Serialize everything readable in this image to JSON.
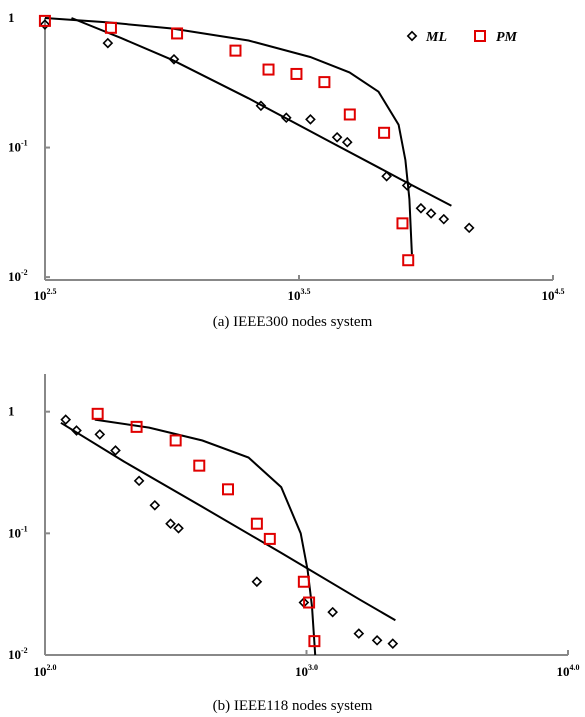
{
  "chart_data": [
    {
      "type": "scatter",
      "caption": "(a) IEEE300 nodes system",
      "x_scale": "log",
      "y_scale": "log",
      "x_ticks": [
        {
          "value": 316.23,
          "base": "10",
          "exp": "2.5"
        },
        {
          "value": 3162.28,
          "base": "10",
          "exp": "3.5"
        },
        {
          "value": 31622.78,
          "base": "10",
          "exp": "4.5"
        }
      ],
      "y_ticks": [
        {
          "value": 1,
          "base": "1",
          "exp": ""
        },
        {
          "value": 0.1,
          "base": "10",
          "exp": "-1"
        },
        {
          "value": 0.01,
          "base": "10",
          "exp": "-2"
        }
      ],
      "xlim": [
        316.23,
        31622.78
      ],
      "ylim": [
        0.0095,
        1.0
      ],
      "legend": {
        "position": "top-right",
        "entries": [
          "ML",
          "PM"
        ]
      },
      "series": [
        {
          "name": "ML",
          "marker": "diamond",
          "color": "#000000",
          "points": [
            [
              316,
              0.89
            ],
            [
              559,
              0.64
            ],
            [
              1018,
              0.48
            ],
            [
              2239,
              0.21
            ],
            [
              2818,
              0.17
            ],
            [
              3508,
              0.165
            ],
            [
              4467,
              0.12
            ],
            [
              4898,
              0.11
            ],
            [
              6998,
              0.06
            ],
            [
              8428,
              0.051
            ],
            [
              9551,
              0.034
            ],
            [
              10471,
              0.031
            ],
            [
              11749,
              0.028
            ],
            [
              14791,
              0.024
            ]
          ]
        },
        {
          "name": "PM",
          "marker": "square",
          "color": "#e00000",
          "points": [
            [
              316,
              0.95
            ],
            [
              575,
              0.84
            ],
            [
              1047,
              0.76
            ],
            [
              1778,
              0.56
            ],
            [
              2399,
              0.4
            ],
            [
              3090,
              0.37
            ],
            [
              3981,
              0.32
            ],
            [
              5012,
              0.18
            ],
            [
              6839,
              0.13
            ],
            [
              8079,
              0.026
            ],
            [
              8511,
              0.0135
            ]
          ]
        }
      ],
      "fits": [
        {
          "for": "ML",
          "points": [
            [
              402,
              1.0
            ],
            [
              631,
              0.7
            ],
            [
              1000,
              0.476
            ],
            [
              2000,
              0.24
            ],
            [
              3981,
              0.117
            ],
            [
              7943,
              0.057
            ],
            [
              12589,
              0.0355
            ]
          ]
        },
        {
          "for": "PM",
          "points": [
            [
              316,
              1.0
            ],
            [
              560,
              0.925
            ],
            [
              1000,
              0.83
            ],
            [
              2000,
              0.67
            ],
            [
              3500,
              0.5
            ],
            [
              5000,
              0.38
            ],
            [
              6500,
              0.27
            ],
            [
              7800,
              0.15
            ],
            [
              8300,
              0.08
            ],
            [
              8600,
              0.04
            ],
            [
              8800,
              0.015
            ]
          ]
        }
      ]
    },
    {
      "type": "scatter",
      "caption": "(b) IEEE118 nodes system",
      "x_scale": "log",
      "y_scale": "log",
      "x_ticks": [
        {
          "value": 100,
          "base": "10",
          "exp": "2.0"
        },
        {
          "value": 1000,
          "base": "10",
          "exp": "3.0"
        },
        {
          "value": 10000,
          "base": "10",
          "exp": "4.0"
        }
      ],
      "y_ticks": [
        {
          "value": 1,
          "base": "1",
          "exp": ""
        },
        {
          "value": 0.1,
          "base": "10",
          "exp": "-1"
        },
        {
          "value": 0.01,
          "base": "10",
          "exp": "-2"
        }
      ],
      "xlim": [
        100,
        10000
      ],
      "ylim": [
        0.01,
        2.04
      ],
      "series": [
        {
          "name": "ML",
          "marker": "diamond",
          "color": "#000000",
          "points": [
            [
              120,
              0.86
            ],
            [
              132,
              0.7
            ],
            [
              162,
              0.65
            ],
            [
              186,
              0.48
            ],
            [
              229,
              0.27
            ],
            [
              263,
              0.17
            ],
            [
              302,
              0.12
            ],
            [
              324,
              0.11
            ],
            [
              646,
              0.04
            ],
            [
              977,
              0.027
            ],
            [
              1259,
              0.0225
            ],
            [
              1585,
              0.015
            ],
            [
              1862,
              0.0132
            ],
            [
              2138,
              0.0124
            ]
          ]
        },
        {
          "name": "PM",
          "marker": "square",
          "color": "#e00000",
          "points": [
            [
              159,
              0.96
            ],
            [
              224,
              0.75
            ],
            [
              316,
              0.58
            ],
            [
              389,
              0.36
            ],
            [
              501,
              0.23
            ],
            [
              646,
              0.12
            ],
            [
              724,
              0.09
            ],
            [
              977,
              0.04
            ],
            [
              1023,
              0.027
            ],
            [
              1072,
              0.013
            ]
          ]
        }
      ],
      "fits": [
        {
          "for": "ML",
          "points": [
            [
              115,
              0.81
            ],
            [
              200,
              0.39
            ],
            [
              400,
              0.165
            ],
            [
              800,
              0.069
            ],
            [
              1600,
              0.0285
            ],
            [
              2188,
              0.0193
            ]
          ]
        },
        {
          "for": "PM",
          "points": [
            [
              155,
              0.86
            ],
            [
              250,
              0.74
            ],
            [
              400,
              0.58
            ],
            [
              600,
              0.42
            ],
            [
              800,
              0.24
            ],
            [
              950,
              0.1
            ],
            [
              1010,
              0.05
            ],
            [
              1050,
              0.025
            ],
            [
              1080,
              0.01
            ]
          ]
        }
      ]
    }
  ]
}
